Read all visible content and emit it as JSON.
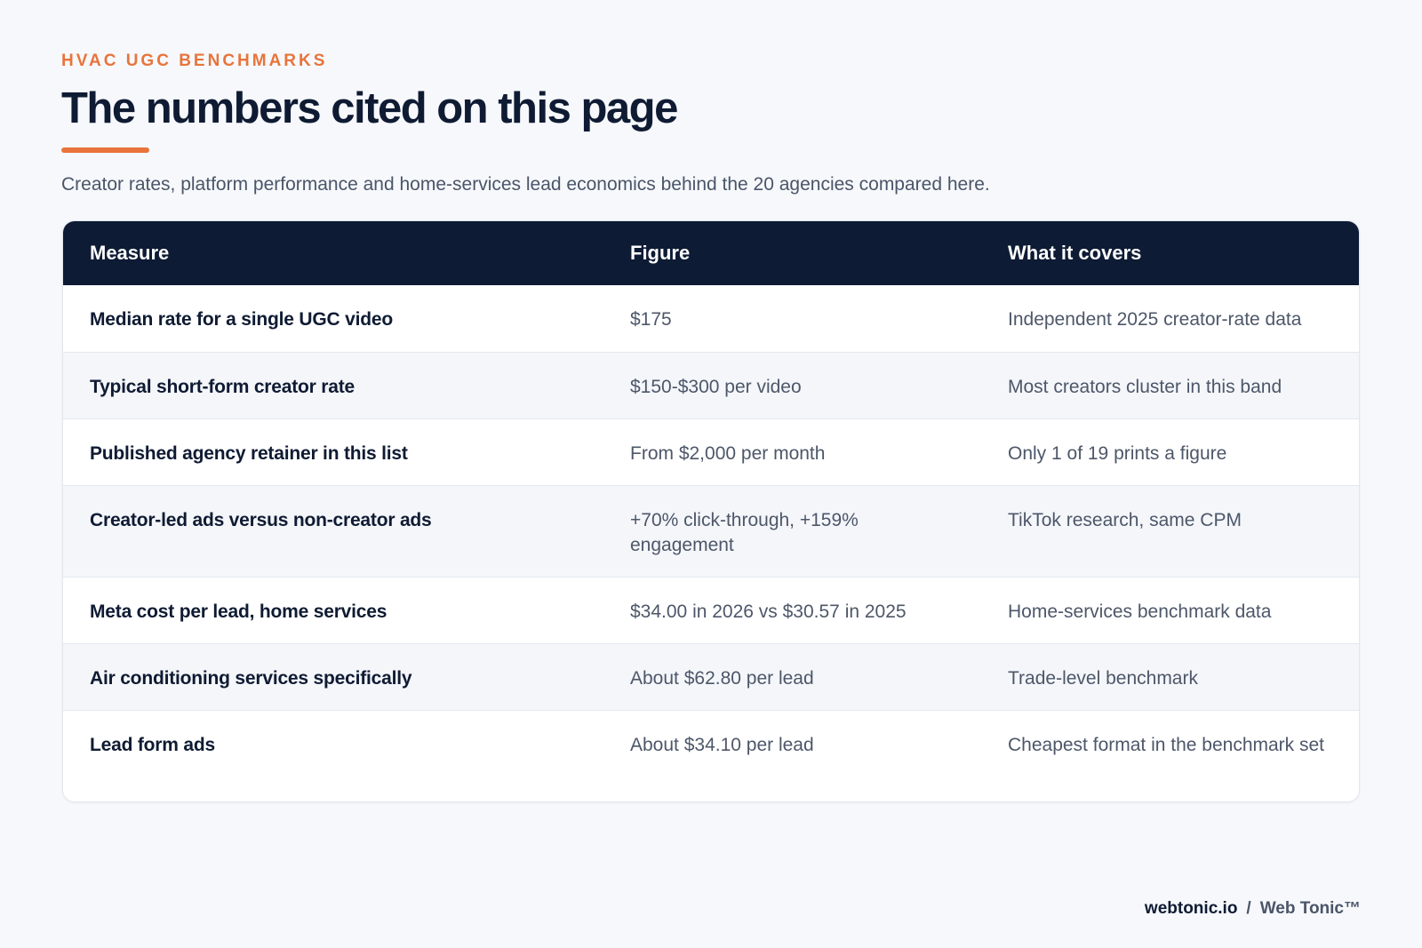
{
  "header": {
    "eyebrow": "HVAC UGC BENCHMARKS",
    "title": "The numbers cited on this page",
    "subtitle": "Creator rates, platform performance and home-services lead economics behind the 20 agencies compared here.",
    "accent_color": "#e8743b"
  },
  "table": {
    "columns": [
      "Measure",
      "Figure",
      "What it covers"
    ],
    "header_color": "#0d1b34",
    "rows": [
      {
        "measure": "Median rate for a single UGC video",
        "figure": "$175",
        "covers": "Independent 2025 creator-rate data"
      },
      {
        "measure": "Typical short-form creator rate",
        "figure": "$150-$300 per video",
        "covers": "Most creators cluster in this band"
      },
      {
        "measure": "Published agency retainer in this list",
        "figure": "From $2,000 per month",
        "covers": "Only 1 of 19 prints a figure"
      },
      {
        "measure": "Creator-led ads versus non-creator ads",
        "figure": "+70% click-through, +159% engagement",
        "covers": "TikTok research, same CPM"
      },
      {
        "measure": "Meta cost per lead, home services",
        "figure": "$34.00 in 2026 vs $30.57 in 2025",
        "covers": "Home-services benchmark data"
      },
      {
        "measure": "Air conditioning services specifically",
        "figure": "About $62.80 per lead",
        "covers": "Trade-level benchmark"
      },
      {
        "measure": "Lead form ads",
        "figure": "About $34.10 per lead",
        "covers": "Cheapest format in the benchmark set"
      }
    ]
  },
  "footer": {
    "domain": "webtonic.io",
    "separator": "/",
    "brand": "Web Tonic™"
  }
}
